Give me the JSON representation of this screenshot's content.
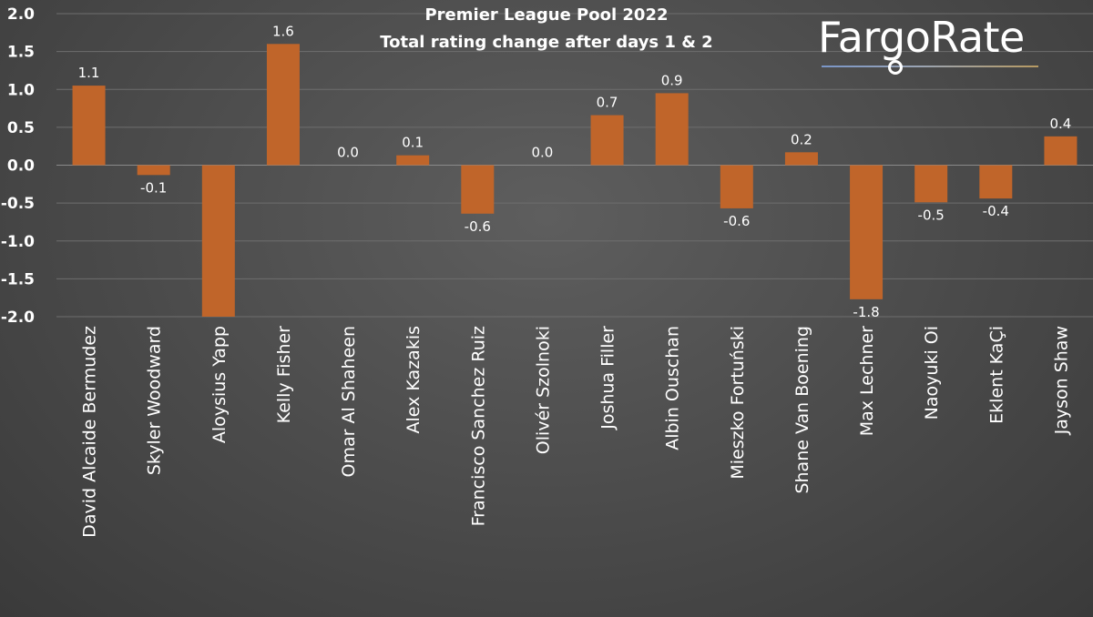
{
  "logo": {
    "text": "FargoRate",
    "colors": {
      "text": "#ffffff",
      "rule_left": "#7a96c8",
      "rule_right": "#b79a62"
    }
  },
  "chart_data": {
    "type": "bar",
    "title_lines": [
      "Premier League Pool 2022",
      "Total rating change after days 1 & 2"
    ],
    "xlabel": "",
    "ylabel": "",
    "ylim": [
      -2.0,
      2.0
    ],
    "yticks": [
      "2.0",
      "1.5",
      "1.0",
      "0.5",
      "0.0",
      "-0.5",
      "-1.0",
      "-1.5",
      "-2.0"
    ],
    "ytick_values": [
      2.0,
      1.5,
      1.0,
      0.5,
      0.0,
      -0.5,
      -1.0,
      -1.5,
      -2.0
    ],
    "grid": true,
    "legend": "none",
    "bar_color": "#c0652a",
    "categories": [
      "David Alcaide Bermudez",
      "Skyler Woodward",
      "Aloysius Yapp",
      "Kelly Fisher",
      "Omar Al Shaheen",
      "Alex Kazakis",
      "Francisco Sanchez Ruiz",
      "Olivér Szolnoki",
      "Joshua Filler",
      "Albin Ouschan",
      "Mieszko Fortuński",
      "Shane Van Boening",
      "Max Lechner",
      "Naoyuki Oi",
      "Eklent KaÇi",
      "Jayson Shaw"
    ],
    "values": [
      1.05,
      -0.13,
      -2.0,
      1.6,
      0.0,
      0.13,
      -0.64,
      0.0,
      0.66,
      0.95,
      -0.57,
      0.17,
      -1.77,
      -0.49,
      -0.44,
      0.38
    ],
    "data_labels": [
      "1.1",
      "-0.1",
      "",
      "1.6",
      "0.0",
      "0.1",
      "-0.6",
      "0.0",
      "0.7",
      "0.9",
      "-0.6",
      "0.2",
      "-1.8",
      "-0.5",
      "-0.4",
      "0.4"
    ]
  }
}
